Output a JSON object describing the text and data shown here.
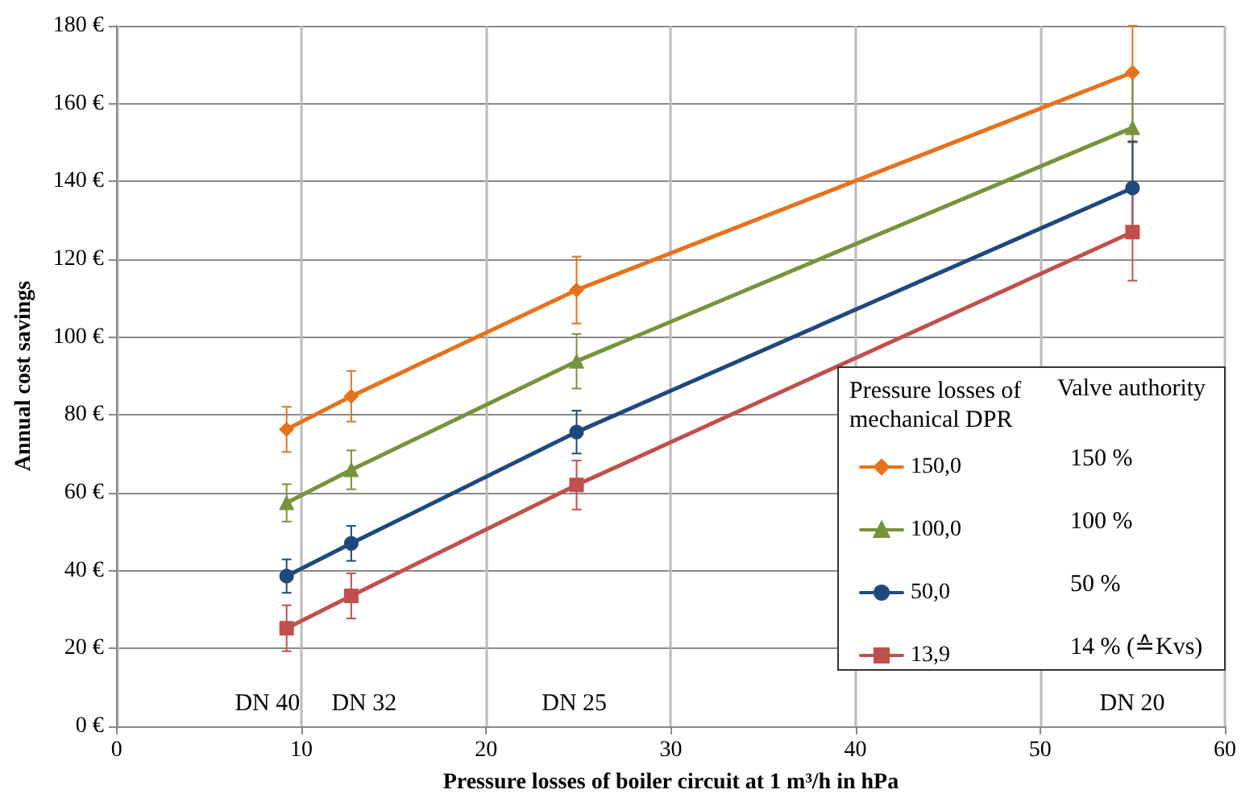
{
  "chart_data": {
    "type": "line",
    "xlabel": "Pressure losses of boiler circuit at 1 m³/h in hPa",
    "ylabel": "Annual cost savings",
    "legend_title": "Pressure losses of mechanical DPR",
    "x": [
      9.2,
      12.7,
      24.9,
      55
    ],
    "series": [
      {
        "name": "150,0",
        "color": "#e8711c",
        "marker": "diamond",
        "values": [
          76.3,
          84.8,
          112.1,
          168
        ],
        "errors": [
          5.8,
          6.5,
          8.6,
          [
            150,
            180
          ]
        ]
      },
      {
        "name": "100,0",
        "color": "#77933c",
        "marker": "triangle",
        "values": [
          57.4,
          65.9,
          93.8,
          153.8
        ],
        "errors": [
          4.8,
          5,
          7,
          14
        ]
      },
      {
        "name": "50,0",
        "color": "#1f497d",
        "marker": "circle",
        "values": [
          38.6,
          47,
          75.6,
          138.3
        ],
        "errors": [
          4.3,
          4.5,
          5.5,
          12
        ]
      },
      {
        "name": "13,9",
        "color": "#c0504d",
        "marker": "square",
        "values": [
          25.2,
          33.5,
          62,
          127
        ],
        "errors": [
          5.9,
          5.8,
          6.3,
          12.5
        ]
      }
    ],
    "xlim": [
      0,
      60
    ],
    "xticks": [
      0,
      10,
      20,
      30,
      40,
      50,
      60
    ],
    "ylim": [
      0,
      180
    ],
    "yticks": [
      {
        "value": 0,
        "label": "0 €"
      },
      {
        "value": 20,
        "label": "20 €"
      },
      {
        "value": 40,
        "label": "40 €"
      },
      {
        "value": 60,
        "label": "60 €"
      },
      {
        "value": 80,
        "label": "80 €"
      },
      {
        "value": 100,
        "label": "100 €"
      },
      {
        "value": 120,
        "label": "120 €"
      },
      {
        "value": 140,
        "label": "140 €"
      },
      {
        "value": 160,
        "label": "160 €"
      },
      {
        "value": 180,
        "label": "180 €"
      }
    ],
    "grid": true,
    "legend": "bottom right",
    "line_style": "solid",
    "annotations": [
      "DN 40",
      "DN 32",
      "DN 25",
      "DN 20",
      "Valve authority",
      "150 %",
      "100 %",
      "50 %",
      "14 % (≙Kvs)"
    ]
  }
}
